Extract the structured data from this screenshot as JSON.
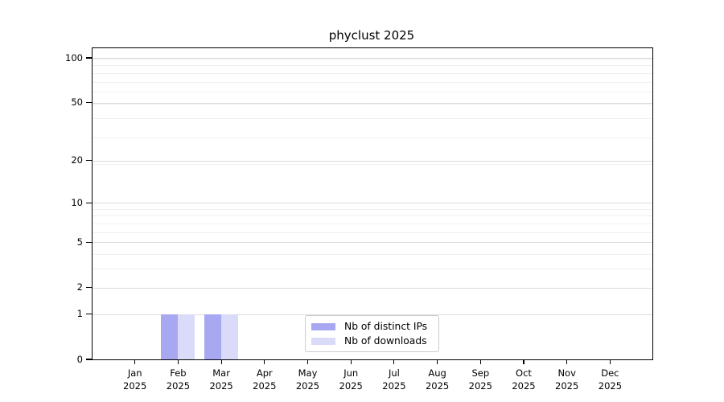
{
  "chart_data": {
    "type": "bar",
    "title": "phyclust 2025",
    "x": {
      "months": [
        "Jan",
        "Feb",
        "Mar",
        "Apr",
        "May",
        "Jun",
        "Jul",
        "Aug",
        "Sep",
        "Oct",
        "Nov",
        "Dec"
      ],
      "year": "2025"
    },
    "categories": [
      "Jan 2025",
      "Feb 2025",
      "Mar 2025",
      "Apr 2025",
      "May 2025",
      "Jun 2025",
      "Jul 2025",
      "Aug 2025",
      "Sep 2025",
      "Oct 2025",
      "Nov 2025",
      "Dec 2025"
    ],
    "series": [
      {
        "name": "Nb of distinct IPs",
        "color": "#a8a8f2",
        "values": [
          0,
          1,
          1,
          0,
          0,
          0,
          0,
          0,
          0,
          0,
          0,
          0
        ]
      },
      {
        "name": "Nb of downloads",
        "color": "#dadaf9",
        "values": [
          0,
          1,
          1,
          0,
          0,
          0,
          0,
          0,
          0,
          0,
          0,
          0
        ]
      }
    ],
    "y_axis": {
      "scale": "log10(1+y)",
      "tick_values": [
        0,
        1,
        2,
        5,
        10,
        20,
        50,
        100
      ],
      "minor_gridline_values": [
        3,
        4,
        6,
        7,
        8,
        9,
        19,
        29,
        39,
        49,
        59,
        69,
        79,
        89,
        99
      ],
      "range": [
        0,
        116
      ]
    },
    "legend": {
      "position": "inside-bottom-center"
    },
    "grid": true,
    "colors": {
      "axis": "#000000",
      "grid_major": "#dbdbdb",
      "grid_minor": "#f0f0f0",
      "background": "#ffffff"
    }
  }
}
